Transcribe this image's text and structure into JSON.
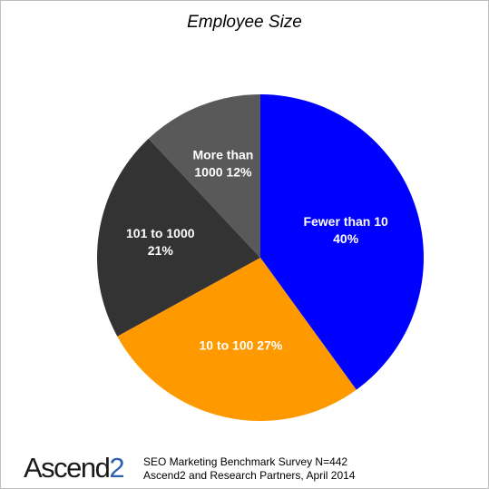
{
  "chart_data": {
    "type": "pie",
    "title": "Employee Size",
    "slices": [
      {
        "label_lines": [
          "Fewer than 10",
          "40%"
        ],
        "value": 40,
        "color": "#0000ff"
      },
      {
        "label_lines": [
          "10 to 100 27%"
        ],
        "value": 27,
        "color": "#ff9900"
      },
      {
        "label_lines": [
          "101 to 1000",
          "21%"
        ],
        "value": 21,
        "color": "#333333"
      },
      {
        "label_lines": [
          "More than",
          "1000 12%"
        ],
        "value": 12,
        "color": "#595959"
      }
    ],
    "start_angle_deg": 0,
    "direction": "clockwise"
  },
  "footer": {
    "logo_text": "Ascend",
    "logo_accent": "2",
    "source_line1": "SEO Marketing Benchmark Survey N=442",
    "source_line2": "Ascend2 and Research Partners, April 2014"
  }
}
